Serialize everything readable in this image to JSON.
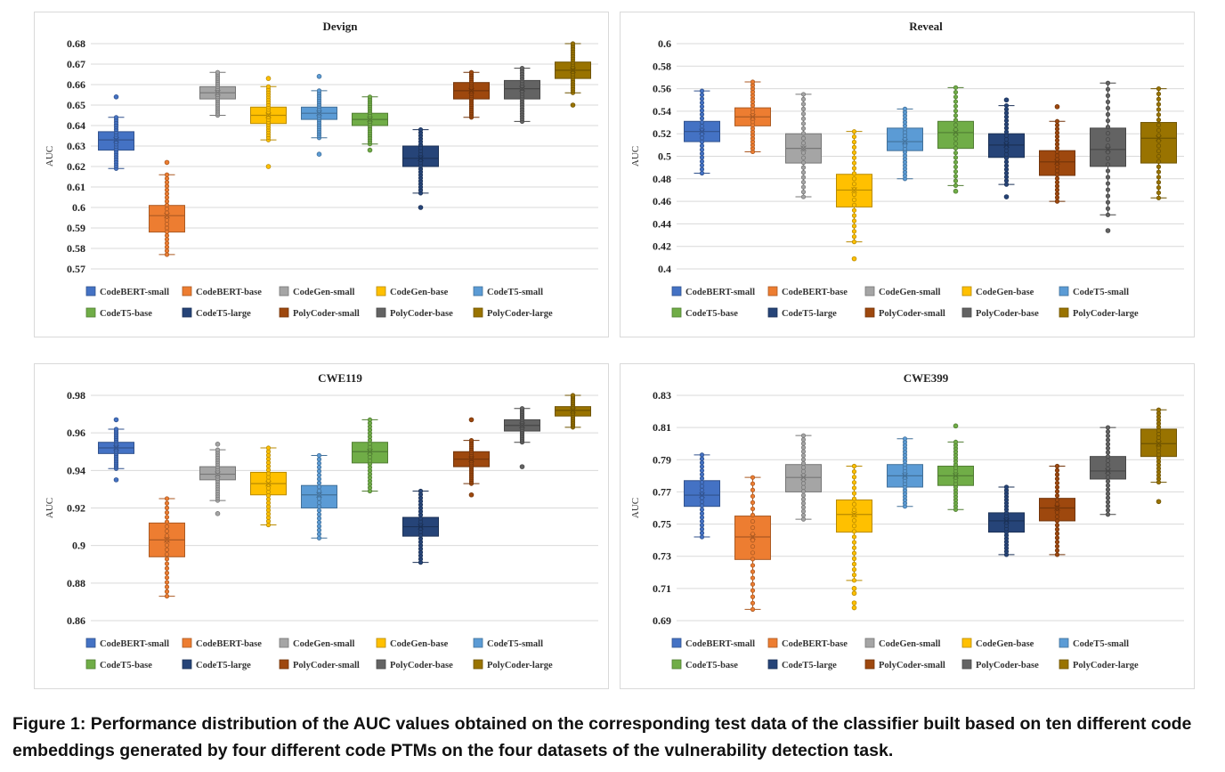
{
  "caption": "Figure 1: Performance distribution of the AUC values obtained on the corresponding test data of the classifier built based on ten different code embeddings generated by four different code PTMs on the four datasets of the vulnerability detection task.",
  "legend": [
    {
      "name": "CodeBERT-small",
      "color": "#4472C4"
    },
    {
      "name": "CodeBERT-base",
      "color": "#ED7D31"
    },
    {
      "name": "CodeGen-small",
      "color": "#A5A5A5"
    },
    {
      "name": "CodeGen-base",
      "color": "#FFC000"
    },
    {
      "name": "CodeT5-small",
      "color": "#5B9BD5"
    },
    {
      "name": "CodeT5-base",
      "color": "#70AD47"
    },
    {
      "name": "CodeT5-large",
      "color": "#264478"
    },
    {
      "name": "PolyCoder-small",
      "color": "#9E480E"
    },
    {
      "name": "PolyCoder-base",
      "color": "#636363"
    },
    {
      "name": "PolyCoder-large",
      "color": "#997300"
    }
  ],
  "chart_data": [
    {
      "type": "box",
      "title": "Devign",
      "ylabel": "AUC",
      "ylim": [
        0.57,
        0.68
      ],
      "ticks": [
        "0.57",
        "0.58",
        "0.59",
        "0.6",
        "0.61",
        "0.62",
        "0.63",
        "0.64",
        "0.65",
        "0.66",
        "0.67",
        "0.68"
      ],
      "series": [
        {
          "name": "CodeBERT-small",
          "whisker_low": 0.619,
          "q1": 0.628,
          "median": 0.633,
          "q3": 0.637,
          "whisker_high": 0.644,
          "outliers": [
            0.654
          ]
        },
        {
          "name": "CodeBERT-base",
          "whisker_low": 0.577,
          "q1": 0.588,
          "median": 0.596,
          "q3": 0.601,
          "whisker_high": 0.616,
          "outliers": [
            0.622
          ]
        },
        {
          "name": "CodeGen-small",
          "whisker_low": 0.645,
          "q1": 0.653,
          "median": 0.656,
          "q3": 0.659,
          "whisker_high": 0.666,
          "outliers": []
        },
        {
          "name": "CodeGen-base",
          "whisker_low": 0.633,
          "q1": 0.641,
          "median": 0.645,
          "q3": 0.649,
          "whisker_high": 0.659,
          "outliers": [
            0.62,
            0.663
          ]
        },
        {
          "name": "CodeT5-small",
          "whisker_low": 0.634,
          "q1": 0.643,
          "median": 0.646,
          "q3": 0.649,
          "whisker_high": 0.657,
          "outliers": [
            0.626,
            0.664
          ]
        },
        {
          "name": "CodeT5-base",
          "whisker_low": 0.631,
          "q1": 0.64,
          "median": 0.643,
          "q3": 0.646,
          "whisker_high": 0.654,
          "outliers": [
            0.628
          ]
        },
        {
          "name": "CodeT5-large",
          "whisker_low": 0.607,
          "q1": 0.62,
          "median": 0.624,
          "q3": 0.63,
          "whisker_high": 0.638,
          "outliers": [
            0.6
          ]
        },
        {
          "name": "PolyCoder-small",
          "whisker_low": 0.644,
          "q1": 0.653,
          "median": 0.657,
          "q3": 0.661,
          "whisker_high": 0.666,
          "outliers": []
        },
        {
          "name": "PolyCoder-base",
          "whisker_low": 0.642,
          "q1": 0.653,
          "median": 0.658,
          "q3": 0.662,
          "whisker_high": 0.668,
          "outliers": []
        },
        {
          "name": "PolyCoder-large",
          "whisker_low": 0.656,
          "q1": 0.663,
          "median": 0.667,
          "q3": 0.671,
          "whisker_high": 0.68,
          "outliers": [
            0.65
          ]
        }
      ]
    },
    {
      "type": "box",
      "title": "Reveal",
      "ylabel": "AUC",
      "ylim": [
        0.4,
        0.6
      ],
      "ticks": [
        "0.4",
        "0.42",
        "0.44",
        "0.46",
        "0.48",
        "0.5",
        "0.52",
        "0.54",
        "0.56",
        "0.58",
        "0.6"
      ],
      "series": [
        {
          "name": "CodeBERT-small",
          "whisker_low": 0.485,
          "q1": 0.513,
          "median": 0.522,
          "q3": 0.531,
          "whisker_high": 0.558,
          "outliers": []
        },
        {
          "name": "CodeBERT-base",
          "whisker_low": 0.504,
          "q1": 0.527,
          "median": 0.535,
          "q3": 0.543,
          "whisker_high": 0.566,
          "outliers": []
        },
        {
          "name": "CodeGen-small",
          "whisker_low": 0.464,
          "q1": 0.494,
          "median": 0.507,
          "q3": 0.52,
          "whisker_high": 0.555,
          "outliers": []
        },
        {
          "name": "CodeGen-base",
          "whisker_low": 0.424,
          "q1": 0.455,
          "median": 0.47,
          "q3": 0.484,
          "whisker_high": 0.522,
          "outliers": [
            0.409
          ]
        },
        {
          "name": "CodeT5-small",
          "whisker_low": 0.48,
          "q1": 0.505,
          "median": 0.513,
          "q3": 0.525,
          "whisker_high": 0.542,
          "outliers": []
        },
        {
          "name": "CodeT5-base",
          "whisker_low": 0.474,
          "q1": 0.507,
          "median": 0.521,
          "q3": 0.531,
          "whisker_high": 0.561,
          "outliers": [
            0.469
          ]
        },
        {
          "name": "CodeT5-large",
          "whisker_low": 0.475,
          "q1": 0.499,
          "median": 0.51,
          "q3": 0.52,
          "whisker_high": 0.545,
          "outliers": [
            0.55,
            0.464
          ]
        },
        {
          "name": "PolyCoder-small",
          "whisker_low": 0.46,
          "q1": 0.483,
          "median": 0.495,
          "q3": 0.505,
          "whisker_high": 0.531,
          "outliers": [
            0.544
          ]
        },
        {
          "name": "PolyCoder-base",
          "whisker_low": 0.448,
          "q1": 0.491,
          "median": 0.506,
          "q3": 0.525,
          "whisker_high": 0.565,
          "outliers": [
            0.434
          ]
        },
        {
          "name": "PolyCoder-large",
          "whisker_low": 0.463,
          "q1": 0.494,
          "median": 0.516,
          "q3": 0.53,
          "whisker_high": 0.56,
          "outliers": []
        }
      ]
    },
    {
      "type": "box",
      "title": "CWE119",
      "ylabel": "AUC",
      "ylim": [
        0.86,
        0.98
      ],
      "ticks": [
        "0.86",
        "0.88",
        "0.9",
        "0.92",
        "0.94",
        "0.96",
        "0.98"
      ],
      "series": [
        {
          "name": "CodeBERT-small",
          "whisker_low": 0.941,
          "q1": 0.949,
          "median": 0.952,
          "q3": 0.955,
          "whisker_high": 0.962,
          "outliers": [
            0.935,
            0.967
          ]
        },
        {
          "name": "CodeBERT-base",
          "whisker_low": 0.873,
          "q1": 0.894,
          "median": 0.903,
          "q3": 0.912,
          "whisker_high": 0.925,
          "outliers": []
        },
        {
          "name": "CodeGen-small",
          "whisker_low": 0.924,
          "q1": 0.935,
          "median": 0.938,
          "q3": 0.942,
          "whisker_high": 0.951,
          "outliers": [
            0.917,
            0.954
          ]
        },
        {
          "name": "CodeGen-base",
          "whisker_low": 0.911,
          "q1": 0.927,
          "median": 0.933,
          "q3": 0.939,
          "whisker_high": 0.952,
          "outliers": []
        },
        {
          "name": "CodeT5-small",
          "whisker_low": 0.904,
          "q1": 0.92,
          "median": 0.927,
          "q3": 0.932,
          "whisker_high": 0.948,
          "outliers": []
        },
        {
          "name": "CodeT5-base",
          "whisker_low": 0.929,
          "q1": 0.944,
          "median": 0.95,
          "q3": 0.955,
          "whisker_high": 0.967,
          "outliers": []
        },
        {
          "name": "CodeT5-large",
          "whisker_low": 0.891,
          "q1": 0.905,
          "median": 0.91,
          "q3": 0.915,
          "whisker_high": 0.929,
          "outliers": []
        },
        {
          "name": "PolyCoder-small",
          "whisker_low": 0.933,
          "q1": 0.942,
          "median": 0.946,
          "q3": 0.95,
          "whisker_high": 0.956,
          "outliers": [
            0.927,
            0.967
          ]
        },
        {
          "name": "PolyCoder-base",
          "whisker_low": 0.955,
          "q1": 0.961,
          "median": 0.964,
          "q3": 0.967,
          "whisker_high": 0.973,
          "outliers": [
            0.942
          ]
        },
        {
          "name": "PolyCoder-large",
          "whisker_low": 0.963,
          "q1": 0.969,
          "median": 0.972,
          "q3": 0.974,
          "whisker_high": 0.98,
          "outliers": []
        }
      ]
    },
    {
      "type": "box",
      "title": "CWE399",
      "ylabel": "AUC",
      "ylim": [
        0.69,
        0.83
      ],
      "ticks": [
        "0.69",
        "0.71",
        "0.73",
        "0.75",
        "0.77",
        "0.79",
        "0.81",
        "0.83"
      ],
      "series": [
        {
          "name": "CodeBERT-small",
          "whisker_low": 0.742,
          "q1": 0.761,
          "median": 0.768,
          "q3": 0.777,
          "whisker_high": 0.793,
          "outliers": []
        },
        {
          "name": "CodeBERT-base",
          "whisker_low": 0.697,
          "q1": 0.728,
          "median": 0.742,
          "q3": 0.755,
          "whisker_high": 0.779,
          "outliers": []
        },
        {
          "name": "CodeGen-small",
          "whisker_low": 0.753,
          "q1": 0.77,
          "median": 0.779,
          "q3": 0.787,
          "whisker_high": 0.805,
          "outliers": []
        },
        {
          "name": "CodeGen-base",
          "whisker_low": 0.715,
          "q1": 0.745,
          "median": 0.756,
          "q3": 0.765,
          "whisker_high": 0.786,
          "outliers": [
            0.698,
            0.701,
            0.707,
            0.71
          ]
        },
        {
          "name": "CodeT5-small",
          "whisker_low": 0.761,
          "q1": 0.773,
          "median": 0.78,
          "q3": 0.787,
          "whisker_high": 0.803,
          "outliers": []
        },
        {
          "name": "CodeT5-base",
          "whisker_low": 0.759,
          "q1": 0.774,
          "median": 0.78,
          "q3": 0.786,
          "whisker_high": 0.801,
          "outliers": [
            0.811
          ]
        },
        {
          "name": "CodeT5-large",
          "whisker_low": 0.731,
          "q1": 0.745,
          "median": 0.752,
          "q3": 0.757,
          "whisker_high": 0.773,
          "outliers": []
        },
        {
          "name": "PolyCoder-small",
          "whisker_low": 0.731,
          "q1": 0.752,
          "median": 0.76,
          "q3": 0.766,
          "whisker_high": 0.786,
          "outliers": []
        },
        {
          "name": "PolyCoder-base",
          "whisker_low": 0.756,
          "q1": 0.778,
          "median": 0.783,
          "q3": 0.792,
          "whisker_high": 0.81,
          "outliers": []
        },
        {
          "name": "PolyCoder-large",
          "whisker_low": 0.776,
          "q1": 0.792,
          "median": 0.8,
          "q3": 0.809,
          "whisker_high": 0.821,
          "outliers": [
            0.764
          ]
        }
      ]
    }
  ]
}
